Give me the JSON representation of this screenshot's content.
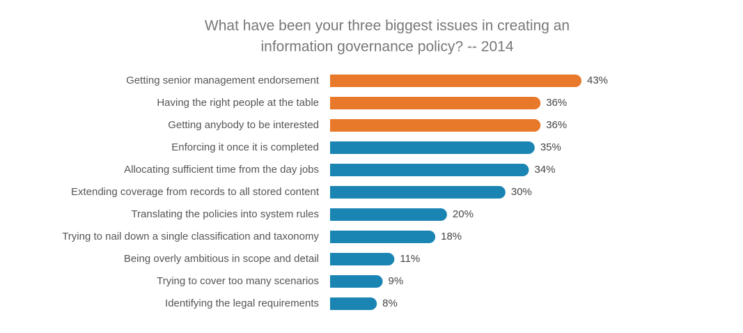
{
  "chart_data": {
    "type": "hbar",
    "title": [
      "What have been your three biggest issues in creating an",
      "information governance policy? -- 2014"
    ],
    "categories": [
      "Getting senior management endorsement",
      "Having the right people at the table",
      "Getting anybody to be interested",
      "Enforcing it once it is completed",
      "Allocating sufficient time from the day jobs",
      "Extending coverage from records to all stored content",
      "Translating the policies into system rules",
      "Trying to nail down a single classification and taxonomy",
      "Being overly ambitious in scope and detail",
      "Trying to cover too many scenarios",
      "Identifying the legal requirements"
    ],
    "values": [
      43,
      36,
      36,
      35,
      34,
      30,
      20,
      18,
      11,
      9,
      8
    ],
    "value_labels": [
      "43%",
      "36%",
      "36%",
      "35%",
      "34%",
      "30%",
      "20%",
      "18%",
      "11%",
      "9%",
      "8%"
    ],
    "colors": [
      "#e8792a",
      "#e8792a",
      "#e8792a",
      "#1a85b3",
      "#1a85b3",
      "#1a85b3",
      "#1a85b3",
      "#1a85b3",
      "#1a85b3",
      "#1a85b3",
      "#1a85b3"
    ]
  }
}
